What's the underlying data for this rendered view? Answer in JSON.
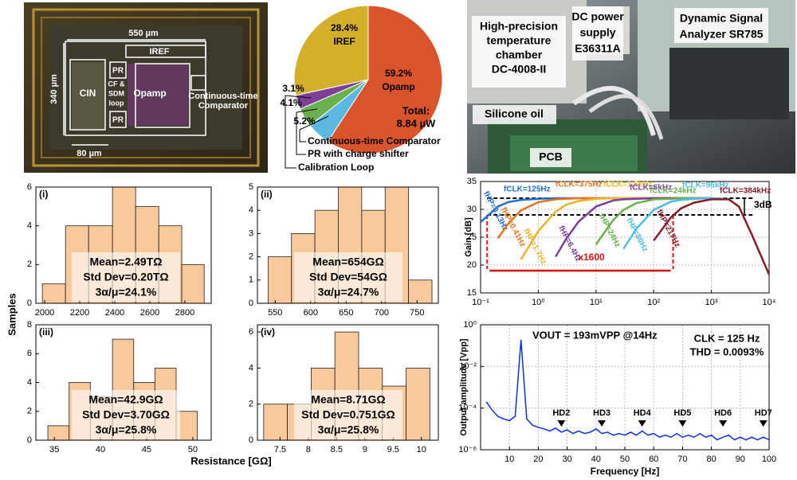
{
  "chip_photo": {
    "labels": [
      "550 µm",
      "340 µm",
      "80 µm",
      "CIN",
      "PR",
      "PR",
      [
        "CF &",
        "SDM",
        "loop"
      ],
      "Opamp",
      "IREF",
      [
        "Continuous-time",
        "Comparator"
      ]
    ]
  },
  "setup_photo": {
    "labels": [
      [
        "High-precision",
        "temperature",
        "chamber",
        "DC-4008-II"
      ],
      [
        "DC power",
        "supply",
        "E36311A"
      ],
      [
        "Dynamic Signal",
        "Analyzer SR785"
      ],
      "Silicone oil",
      "PCB"
    ]
  },
  "histogram_axes": {
    "y_label": "Samples",
    "x_label": "Resistance [GΩ]"
  },
  "chart_data": [
    {
      "type": "pie",
      "categories": [
        "Opamp",
        "Continuous-time Comparator",
        "PR with charge shifter",
        "Calibration Loop",
        "IREF"
      ],
      "values": [
        59.2,
        5.2,
        4.1,
        3.1,
        28.4
      ],
      "value_labels": [
        "59.2%",
        "5.2%",
        "4.1%",
        "3.1%",
        "28.4%"
      ],
      "colors": [
        "#d9532b",
        "#5bb8e0",
        "#6ab04c",
        "#7e3f98",
        "#d4b02a"
      ],
      "annotations": [
        "Total:",
        "8.84 µW"
      ]
    },
    {
      "type": "histogram",
      "panel": "(i)",
      "bins": [
        1987,
        2119,
        2251,
        2387,
        2519,
        2651,
        2782,
        2910
      ],
      "counts": [
        1,
        4,
        4,
        6,
        5,
        4,
        2
      ],
      "color": "#f8c99b",
      "xlim": [
        1950,
        2950
      ],
      "ylim": [
        0,
        6
      ],
      "xticks": [
        2000,
        2200,
        2400,
        2600,
        2800
      ],
      "yticks": [
        0,
        2,
        4,
        6
      ],
      "annotations": [
        "Mean=2.49TΩ",
        "Std Dev=0.20TΩ",
        "3α/μ=24.1%"
      ]
    },
    {
      "type": "histogram",
      "panel": "(ii)",
      "bins": [
        540,
        573,
        606,
        639,
        672,
        705,
        738,
        771
      ],
      "counts": [
        2,
        3,
        4,
        5,
        4,
        5,
        1
      ],
      "color": "#f8c99b",
      "xlim": [
        525,
        780
      ],
      "ylim": [
        0,
        5
      ],
      "xticks": [
        550,
        600,
        650,
        700,
        750
      ],
      "yticks": [
        0,
        1,
        2,
        3,
        4,
        5
      ],
      "annotations": [
        "Mean=654GΩ",
        "Std Dev=54GΩ",
        "3α/μ=24.7%"
      ]
    },
    {
      "type": "histogram",
      "panel": "(iii)",
      "bins": [
        34.3,
        36.6,
        38.9,
        41.3,
        43.6,
        45.9,
        48.2,
        50.5
      ],
      "counts": [
        1,
        4,
        3,
        7,
        4,
        5,
        2
      ],
      "color": "#f8c99b",
      "xlim": [
        33,
        52
      ],
      "ylim": [
        0,
        8
      ],
      "xticks": [
        35,
        40,
        45,
        50
      ],
      "yticks": [
        0,
        2,
        4,
        6,
        8
      ],
      "annotations": [
        "Mean=42.9GΩ",
        "Std Dev=3.70GΩ",
        "3α/μ=25.8%"
      ]
    },
    {
      "type": "histogram",
      "panel": "(iv)",
      "bins": [
        7.21,
        7.63,
        8.05,
        8.47,
        8.89,
        9.31,
        9.73,
        10.15
      ],
      "counts": [
        2,
        2,
        4,
        6,
        4,
        3,
        4
      ],
      "color": "#f8c99b",
      "xlim": [
        7.1,
        10.3
      ],
      "ylim": [
        0,
        6.4
      ],
      "xticks": [
        7.5,
        8,
        8.5,
        9,
        9.5,
        10
      ],
      "yticks": [
        0,
        2,
        4,
        6
      ],
      "annotations": [
        "Mean=8.71GΩ",
        "Std Dev=0.751GΩ",
        "3α/μ=25.8%"
      ]
    },
    {
      "type": "line",
      "y_label": "Gain [dB]",
      "xscale": "log",
      "grid": true,
      "x": [
        0.1,
        0.2,
        0.3,
        0.5,
        1,
        2,
        3,
        5,
        10,
        20,
        30,
        50,
        100,
        200,
        300,
        500,
        1000,
        2000,
        3000,
        5000,
        10000
      ],
      "xlim": [
        0.1,
        10000
      ],
      "ylim": [
        15,
        35
      ],
      "yticks": [
        15,
        20,
        25,
        30,
        35
      ],
      "xticks": [
        {
          "value": 0.1,
          "label": "10⁻¹"
        },
        {
          "value": 1,
          "label": "10⁰"
        },
        {
          "value": 10,
          "label": "10¹"
        },
        {
          "value": 100,
          "label": "10²"
        },
        {
          "value": 1000,
          "label": "10³"
        },
        {
          "value": 10000,
          "label": "10⁴"
        }
      ],
      "series": [
        {
          "name": "fCLK=125Hz",
          "hp_label": "fHP=0.13Hz",
          "color": "#1f6fd0",
          "values": [
            27.7,
            30.5,
            31.3,
            31.7,
            31.9,
            32,
            32,
            32,
            32,
            32,
            32,
            32,
            32,
            32,
            32,
            32,
            32,
            31.8,
            null,
            null,
            null
          ]
        },
        {
          "name": "fCLK=375Hz",
          "hp_label": "fHP=0.41Hz",
          "color": "#e8731c",
          "values": [
            null,
            24.8,
            27.4,
            29.8,
            31.3,
            31.8,
            31.9,
            32,
            32,
            32,
            32,
            32,
            32,
            32,
            32,
            32,
            32,
            31.8,
            null,
            null,
            null
          ]
        },
        {
          "name": "fCLK=1.5kHz",
          "hp_label": "fHP=1.7Hz",
          "color": "#f0b323",
          "values": [
            null,
            null,
            null,
            21.0,
            26.1,
            29.6,
            30.8,
            31.5,
            31.9,
            32,
            32,
            32,
            32,
            32,
            32,
            32,
            32,
            31.8,
            null,
            null,
            null
          ]
        },
        {
          "name": "fCLK=6kHz",
          "hp_label": "fHP=6.4Hz",
          "color": "#7b3fa0",
          "values": [
            null,
            null,
            null,
            null,
            null,
            21.5,
            24.6,
            27.8,
            30.5,
            31.6,
            31.8,
            31.9,
            32,
            32,
            32,
            32,
            32,
            31.8,
            null,
            null,
            null
          ]
        },
        {
          "name": "fCLK=24kHz",
          "hp_label": "fHP=24Hz",
          "color": "#6ab04c",
          "values": [
            null,
            null,
            null,
            null,
            null,
            null,
            null,
            null,
            23.7,
            28.1,
            29.9,
            31.1,
            31.8,
            31.9,
            32,
            32,
            32,
            31.8,
            null,
            null,
            null
          ]
        },
        {
          "name": "fCLK=96kHz",
          "hp_label": "fHP=80Hz",
          "color": "#4dbde8",
          "values": [
            null,
            null,
            null,
            null,
            null,
            null,
            null,
            null,
            null,
            null,
            22.9,
            26.5,
            29.9,
            31.4,
            31.7,
            31.9,
            32,
            31.8,
            null,
            null,
            null
          ]
        },
        {
          "name": "fCLK=384kHz",
          "hp_label": "fHP=217Hz",
          "color": "#8b1a2a",
          "values": [
            null,
            null,
            null,
            null,
            null,
            null,
            null,
            null,
            null,
            null,
            null,
            null,
            24.4,
            28.6,
            30.2,
            31.2,
            31.8,
            31.8,
            30.5,
            25.5,
            18.3
          ]
        }
      ],
      "hlines": [
        32,
        29
      ],
      "vlines": [
        0.13,
        217
      ],
      "annotations": [
        "3dB",
        "x1600"
      ]
    },
    {
      "type": "line",
      "y_label": "Output amplitude [Vpp]",
      "x_label": "Frequency [Hz]",
      "yscale": "log",
      "grid": true,
      "x": [
        2,
        4,
        6,
        8,
        10,
        12,
        14,
        16,
        18,
        20,
        22,
        24,
        26,
        28,
        30,
        32,
        34,
        36,
        38,
        40,
        42,
        44,
        46,
        48,
        50,
        52,
        54,
        56,
        58,
        60,
        62,
        64,
        66,
        68,
        70,
        72,
        74,
        76,
        78,
        80,
        82,
        84,
        86,
        88,
        90,
        92,
        94,
        96,
        98,
        100
      ],
      "xlim": [
        0,
        100
      ],
      "xticks": [
        10,
        20,
        30,
        40,
        50,
        60,
        70,
        80,
        90,
        100
      ],
      "ylim": [
        1e-06,
        1
      ],
      "yticks": [
        {
          "value": 1,
          "label": "10⁰"
        },
        {
          "value": 0.01,
          "label": "10⁻²"
        },
        {
          "value": 0.0001,
          "label": "10⁻⁴"
        },
        {
          "value": 1e-06,
          "label": "10⁻⁶"
        }
      ],
      "series": [
        {
          "color": "#1030e0",
          "values": [
            0.0002,
            8e-05,
            4e-05,
            3e-05,
            2.5e-05,
            4e-05,
            0.19,
            3e-05,
            1.5e-05,
            1.2e-05,
            1e-05,
            8e-06,
            1.1e-05,
            7e-06,
            9e-06,
            6e-06,
            8e-06,
            6e-06,
            7e-06,
            1e-05,
            6e-06,
            7e-06,
            5e-06,
            6e-06,
            5e-06,
            7e-06,
            5e-06,
            8e-06,
            5e-06,
            6e-06,
            4e-06,
            5e-06,
            4e-06,
            6e-06,
            4e-06,
            5e-06,
            4e-06,
            6e-06,
            4e-06,
            5e-06,
            3e-06,
            4e-06,
            5e-06,
            3e-06,
            4e-06,
            3e-06,
            4e-06,
            3e-06,
            4e-06,
            3e-06
          ]
        }
      ],
      "harmonics": [
        {
          "x": 28,
          "label": "HD2"
        },
        {
          "x": 42,
          "label": "HD3"
        },
        {
          "x": 56,
          "label": "HD4"
        },
        {
          "x": 70,
          "label": "HD5"
        },
        {
          "x": 84,
          "label": "HD6"
        },
        {
          "x": 98,
          "label": "HD7"
        }
      ],
      "annotations": [
        "VOUT = 193mVPP @14Hz",
        "CLK = 125 Hz",
        "THD = 0.0093%"
      ]
    }
  ]
}
